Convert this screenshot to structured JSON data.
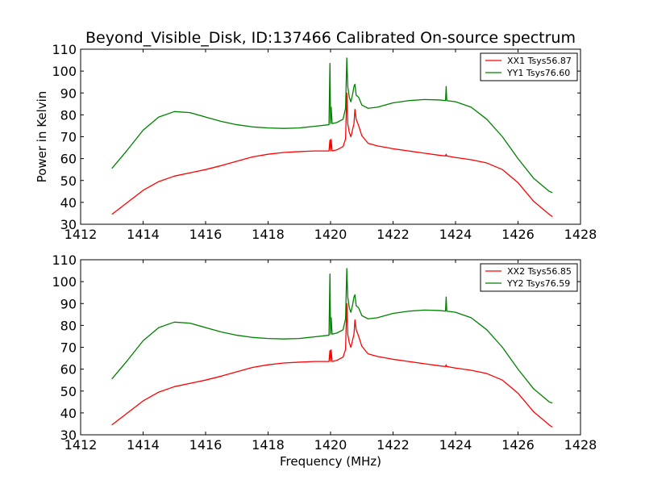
{
  "title": "Beyond_Visible_Disk, ID:137466 Calibrated On-source spectrum",
  "chart_data": [
    {
      "type": "line",
      "title": "Beyond_Visible_Disk, ID:137466 Calibrated On-source spectrum",
      "xlabel": "",
      "ylabel": "Power in Kelvin",
      "xlim": [
        1412,
        1428
      ],
      "ylim": [
        30,
        110
      ],
      "xticks": [
        1412,
        1414,
        1416,
        1418,
        1420,
        1422,
        1424,
        1426,
        1428
      ],
      "yticks": [
        30,
        40,
        50,
        60,
        70,
        80,
        90,
        100,
        110
      ],
      "grid": false,
      "legend": "top-right",
      "series": [
        {
          "name": "XX1 Tsys56.87",
          "color": "#ff0000",
          "x": [
            1413.0,
            1413.5,
            1414.0,
            1414.5,
            1415.0,
            1415.5,
            1416.0,
            1416.5,
            1417.0,
            1417.5,
            1418.0,
            1418.5,
            1419.0,
            1419.5,
            1419.95,
            1419.98,
            1420.0,
            1420.02,
            1420.05,
            1420.2,
            1420.4,
            1420.48,
            1420.52,
            1420.55,
            1420.6,
            1420.65,
            1420.7,
            1420.75,
            1420.78,
            1420.82,
            1420.9,
            1421.0,
            1421.2,
            1421.5,
            1422.0,
            1422.5,
            1423.0,
            1423.5,
            1423.68,
            1423.7,
            1423.72,
            1424.0,
            1424.5,
            1425.0,
            1425.5,
            1426.0,
            1426.5,
            1427.0,
            1427.1
          ],
          "y": [
            34.5,
            40.0,
            45.5,
            49.5,
            52.0,
            53.5,
            55.0,
            56.8,
            58.8,
            60.8,
            62.0,
            62.8,
            63.2,
            63.5,
            63.5,
            68.5,
            63.5,
            68.8,
            63.5,
            64.0,
            65.5,
            69.0,
            90.0,
            76.0,
            72.0,
            70.0,
            73.0,
            76.0,
            82.5,
            78.0,
            75.0,
            70.5,
            67.0,
            65.8,
            64.5,
            63.5,
            62.5,
            61.5,
            61.2,
            62.0,
            61.2,
            60.5,
            59.5,
            58.0,
            55.0,
            49.0,
            40.5,
            34.5,
            33.5
          ]
        },
        {
          "name": "YY1 Tsys76.60",
          "color": "#008000",
          "x": [
            1413.0,
            1413.5,
            1414.0,
            1414.5,
            1415.0,
            1415.5,
            1416.0,
            1416.5,
            1417.0,
            1417.5,
            1418.0,
            1418.5,
            1419.0,
            1419.5,
            1419.95,
            1419.98,
            1420.0,
            1420.02,
            1420.05,
            1420.2,
            1420.4,
            1420.48,
            1420.52,
            1420.55,
            1420.6,
            1420.65,
            1420.7,
            1420.75,
            1420.78,
            1420.82,
            1420.9,
            1421.0,
            1421.2,
            1421.5,
            1422.0,
            1422.5,
            1423.0,
            1423.5,
            1423.68,
            1423.7,
            1423.72,
            1424.0,
            1424.5,
            1425.0,
            1425.5,
            1426.0,
            1426.5,
            1427.0,
            1427.1
          ],
          "y": [
            55.5,
            64.0,
            73.0,
            79.0,
            81.5,
            81.0,
            79.0,
            77.0,
            75.5,
            74.5,
            74.0,
            73.8,
            74.0,
            74.8,
            75.5,
            103.5,
            76.0,
            83.5,
            76.0,
            76.5,
            78.0,
            83.0,
            106.0,
            93.0,
            88.0,
            86.0,
            89.0,
            93.0,
            94.0,
            89.0,
            88.0,
            84.5,
            83.0,
            83.5,
            85.5,
            86.5,
            87.0,
            86.8,
            86.5,
            93.0,
            86.5,
            86.0,
            83.5,
            78.0,
            70.0,
            60.0,
            51.0,
            45.0,
            44.5
          ]
        }
      ]
    },
    {
      "type": "line",
      "title": "",
      "xlabel": "Frequency (MHz)",
      "ylabel": "",
      "xlim": [
        1412,
        1428
      ],
      "ylim": [
        30,
        110
      ],
      "xticks": [
        1412,
        1414,
        1416,
        1418,
        1420,
        1422,
        1424,
        1426,
        1428
      ],
      "yticks": [
        30,
        40,
        50,
        60,
        70,
        80,
        90,
        100,
        110
      ],
      "grid": false,
      "legend": "top-right",
      "series": [
        {
          "name": "XX2 Tsys56.85",
          "color": "#ff0000",
          "x": [
            1413.0,
            1413.5,
            1414.0,
            1414.5,
            1415.0,
            1415.5,
            1416.0,
            1416.5,
            1417.0,
            1417.5,
            1418.0,
            1418.5,
            1419.0,
            1419.5,
            1419.95,
            1419.98,
            1420.0,
            1420.02,
            1420.05,
            1420.2,
            1420.4,
            1420.48,
            1420.52,
            1420.55,
            1420.6,
            1420.65,
            1420.7,
            1420.75,
            1420.78,
            1420.82,
            1420.9,
            1421.0,
            1421.2,
            1421.5,
            1422.0,
            1422.5,
            1423.0,
            1423.5,
            1423.68,
            1423.7,
            1423.72,
            1424.0,
            1424.5,
            1425.0,
            1425.5,
            1426.0,
            1426.5,
            1427.0,
            1427.1
          ],
          "y": [
            34.5,
            40.0,
            45.5,
            49.5,
            52.0,
            53.5,
            55.0,
            56.8,
            58.8,
            60.8,
            62.0,
            62.8,
            63.2,
            63.5,
            63.5,
            68.5,
            63.5,
            68.8,
            63.5,
            64.0,
            65.5,
            69.0,
            90.0,
            76.0,
            72.0,
            70.0,
            73.0,
            76.0,
            82.5,
            78.0,
            75.0,
            70.5,
            67.0,
            65.8,
            64.5,
            63.5,
            62.5,
            61.5,
            61.2,
            62.0,
            61.2,
            60.5,
            59.5,
            58.0,
            55.0,
            49.0,
            40.5,
            34.5,
            33.5
          ]
        },
        {
          "name": "YY2 Tsys76.59",
          "color": "#008000",
          "x": [
            1413.0,
            1413.5,
            1414.0,
            1414.5,
            1415.0,
            1415.5,
            1416.0,
            1416.5,
            1417.0,
            1417.5,
            1418.0,
            1418.5,
            1419.0,
            1419.5,
            1419.95,
            1419.98,
            1420.0,
            1420.02,
            1420.05,
            1420.2,
            1420.4,
            1420.48,
            1420.52,
            1420.55,
            1420.6,
            1420.65,
            1420.7,
            1420.75,
            1420.78,
            1420.82,
            1420.9,
            1421.0,
            1421.2,
            1421.5,
            1422.0,
            1422.5,
            1423.0,
            1423.5,
            1423.68,
            1423.7,
            1423.72,
            1424.0,
            1424.5,
            1425.0,
            1425.5,
            1426.0,
            1426.5,
            1427.0,
            1427.1
          ],
          "y": [
            55.5,
            64.0,
            73.0,
            79.0,
            81.5,
            81.0,
            79.0,
            77.0,
            75.5,
            74.5,
            74.0,
            73.8,
            74.0,
            74.8,
            75.5,
            103.5,
            76.0,
            83.5,
            76.0,
            76.5,
            78.0,
            83.0,
            106.0,
            93.0,
            88.0,
            86.0,
            89.0,
            93.0,
            94.0,
            89.0,
            88.0,
            84.5,
            83.0,
            83.5,
            85.5,
            86.5,
            87.0,
            86.8,
            86.5,
            93.0,
            86.5,
            86.0,
            83.5,
            78.0,
            70.0,
            60.0,
            51.0,
            45.0,
            44.5
          ]
        }
      ]
    }
  ]
}
